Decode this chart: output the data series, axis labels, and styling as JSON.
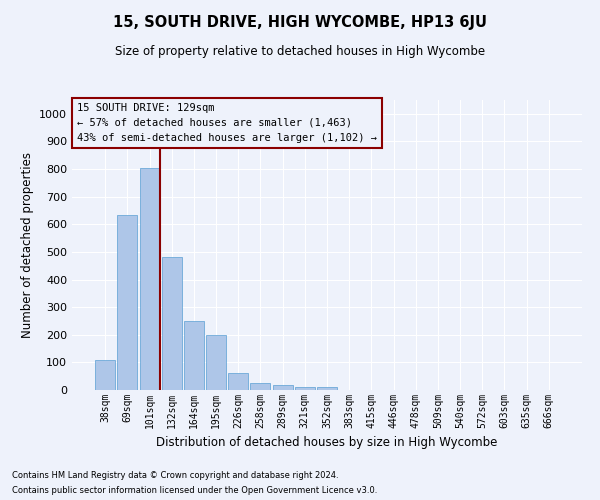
{
  "title": "15, SOUTH DRIVE, HIGH WYCOMBE, HP13 6JU",
  "subtitle": "Size of property relative to detached houses in High Wycombe",
  "xlabel": "Distribution of detached houses by size in High Wycombe",
  "ylabel": "Number of detached properties",
  "categories": [
    "38sqm",
    "69sqm",
    "101sqm",
    "132sqm",
    "164sqm",
    "195sqm",
    "226sqm",
    "258sqm",
    "289sqm",
    "321sqm",
    "352sqm",
    "383sqm",
    "415sqm",
    "446sqm",
    "478sqm",
    "509sqm",
    "540sqm",
    "572sqm",
    "603sqm",
    "635sqm",
    "666sqm"
  ],
  "values": [
    110,
    635,
    805,
    480,
    250,
    200,
    60,
    25,
    18,
    12,
    10,
    0,
    0,
    0,
    0,
    0,
    0,
    0,
    0,
    0,
    0
  ],
  "bar_color": "#aec6e8",
  "bar_edge_color": "#5a9fd4",
  "ylim": [
    0,
    1050
  ],
  "yticks": [
    0,
    100,
    200,
    300,
    400,
    500,
    600,
    700,
    800,
    900,
    1000
  ],
  "property_size": 129,
  "vline_color": "#8b0000",
  "annotation_text": "15 SOUTH DRIVE: 129sqm\n← 57% of detached houses are smaller (1,463)\n43% of semi-detached houses are larger (1,102) →",
  "annotation_box_color": "#8b0000",
  "footnote1": "Contains HM Land Registry data © Crown copyright and database right 2024.",
  "footnote2": "Contains public sector information licensed under the Open Government Licence v3.0.",
  "background_color": "#eef2fb",
  "grid_color": "#ffffff"
}
